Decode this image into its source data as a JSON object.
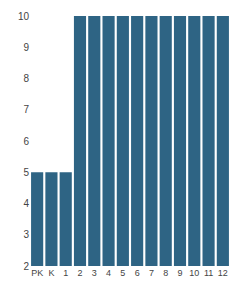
{
  "chart_data": {
    "type": "bar",
    "categories": [
      "PK",
      "K",
      "1",
      "2",
      "3",
      "4",
      "5",
      "6",
      "7",
      "8",
      "9",
      "10",
      "11",
      "12"
    ],
    "values": [
      5,
      5,
      5,
      10,
      10,
      10,
      10,
      10,
      10,
      10,
      10,
      10,
      10,
      10
    ],
    "color": "#2e6484",
    "ylim": [
      2,
      10
    ],
    "yticks": [
      2,
      3,
      4,
      5,
      6,
      7,
      8,
      9,
      10
    ],
    "grid": false
  }
}
